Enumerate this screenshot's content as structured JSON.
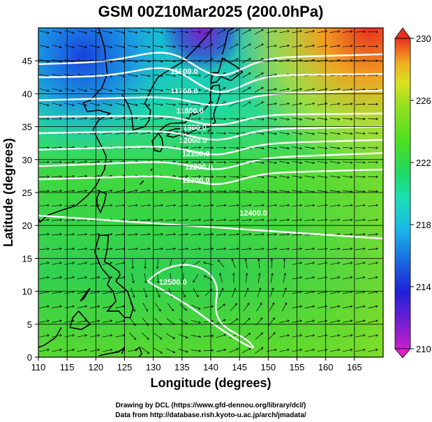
{
  "chart_data": {
    "type": "heatmap",
    "title": "GSM 00Z10Mar2025 (200.0hPa)",
    "xlabel": "Longitude (degrees)",
    "ylabel": "Latitude  (degrees)",
    "xlim": [
      110,
      170
    ],
    "ylim": [
      0,
      50
    ],
    "x_ticks": [
      "110",
      "115",
      "120",
      "125",
      "130",
      "135",
      "140",
      "145",
      "150",
      "155",
      "160",
      "165"
    ],
    "y_ticks": [
      "0",
      "5",
      "10",
      "15",
      "20",
      "25",
      "30",
      "35",
      "40",
      "45"
    ],
    "grid": true,
    "colorbar": {
      "min": 210,
      "max": 230,
      "ticks": [
        "210",
        "214",
        "218",
        "222",
        "226",
        "230"
      ],
      "colors": [
        "#e01ec8",
        "#7a1fd0",
        "#2020d8",
        "#1a6be0",
        "#1ab8e8",
        "#1ae0b0",
        "#20d860",
        "#50e020",
        "#90e020",
        "#d8e020",
        "#f0b020",
        "#f07020",
        "#e83020"
      ]
    },
    "contours": [
      {
        "label": "11900.0",
        "lat_west": 44.5,
        "lat_east": 46.0,
        "label_lon": 133.0,
        "label_lat": 43.0
      },
      {
        "label": "11700.0",
        "lat_west": 42.5,
        "lat_east": 43.0,
        "label_lon": 133.0,
        "label_lat": 40.0
      },
      {
        "label": "11800.0",
        "lat_west": 39.0,
        "lat_east": 40.5,
        "label_lon": 134.0,
        "label_lat": 37.0
      },
      {
        "label": "11900.0",
        "lat_west": 36.5,
        "lat_east": 37.0,
        "label_lon": 134.5,
        "label_lat": 34.5
      },
      {
        "label": "12000.0",
        "lat_west": 34.0,
        "lat_east": 35.0,
        "label_lon": 134.5,
        "label_lat": 32.5
      },
      {
        "label": "12100.0",
        "lat_west": 31.5,
        "lat_east": 33.0,
        "label_lon": 135.0,
        "label_lat": 30.5
      },
      {
        "label": "12200.0",
        "lat_west": 29.0,
        "lat_east": 31.0,
        "label_lon": 135.5,
        "label_lat": 28.5
      },
      {
        "label": "12300.0",
        "lat_west": 27.0,
        "lat_east": 28.5,
        "label_lon": 135.0,
        "label_lat": 26.5
      },
      {
        "label": "12400.0",
        "lat_west": 21.5,
        "lat_east": 18.0,
        "label_lon": 145.0,
        "label_lat": 21.5
      },
      {
        "label": "12500.0",
        "lat_west": 12.0,
        "lat_east": 1.0,
        "label_lon": 131.0,
        "label_lat": 11.0
      }
    ],
    "credits": [
      "Drawing by DCL (https://www.gfd-dennou.org/library/dcl/)",
      "Data from http://database.rish.kyoto-u.ac.jp/arch/jmadata/"
    ]
  },
  "colors": {
    "contour": "#ffffff",
    "coast": "#000000",
    "vector": "#000000"
  }
}
